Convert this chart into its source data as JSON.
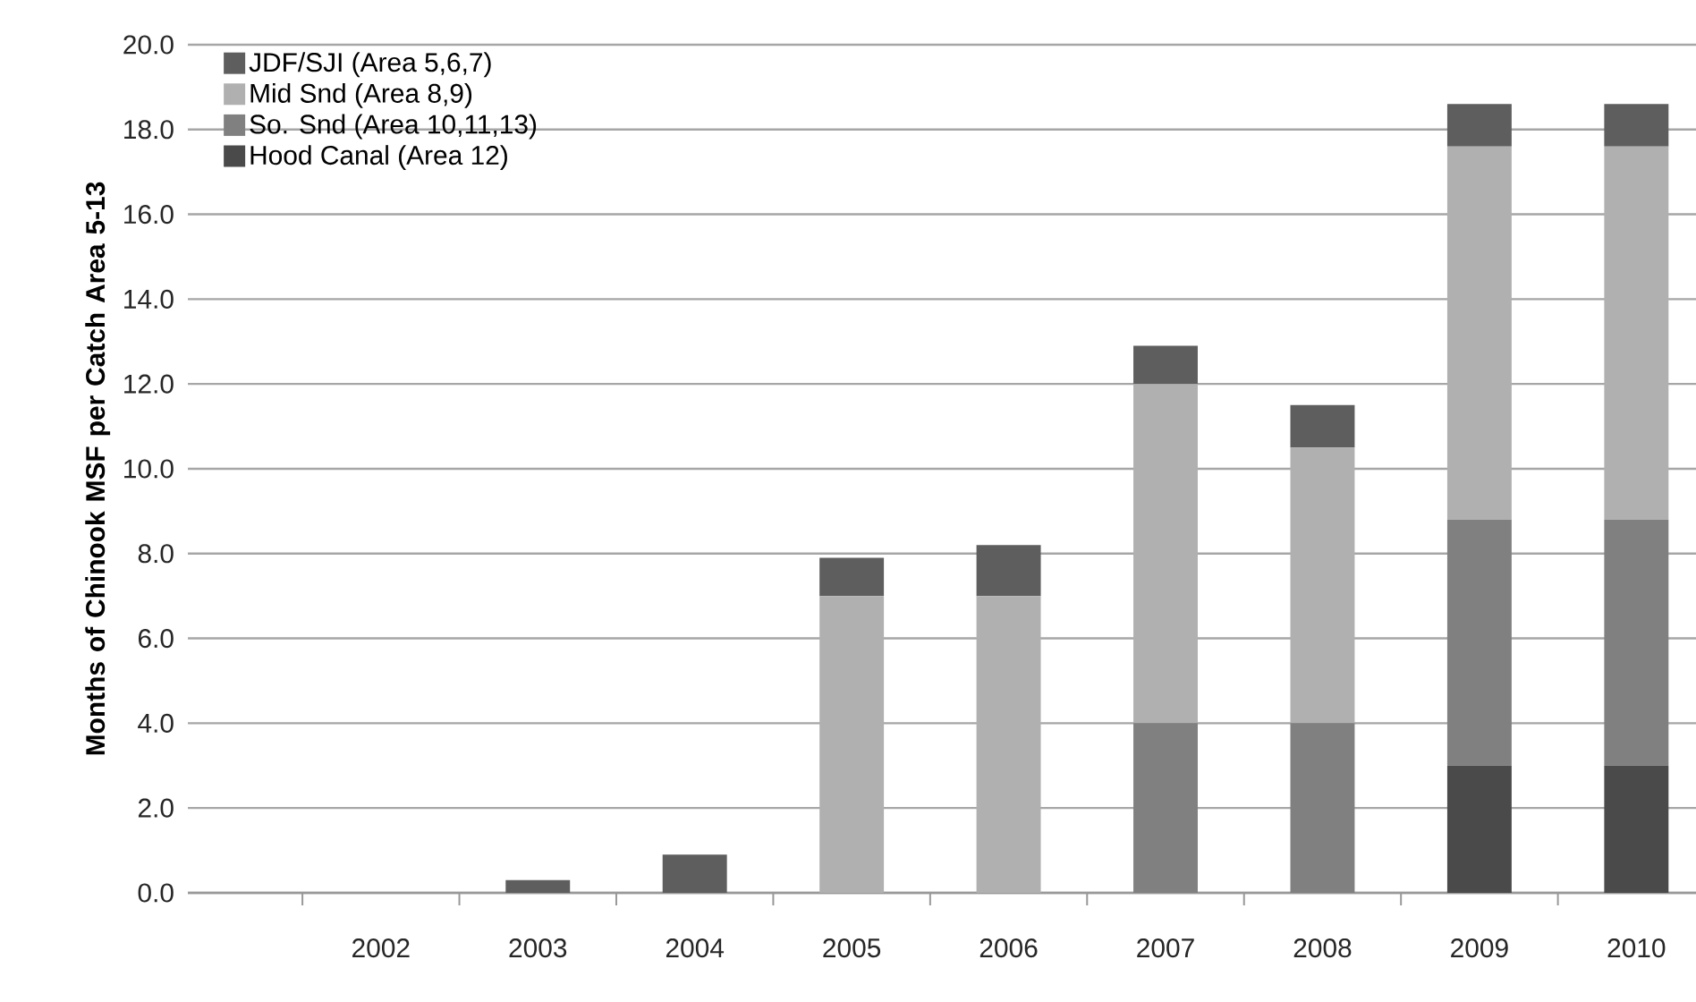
{
  "chart_data": {
    "type": "bar",
    "stacked": true,
    "ylabel": "Months of Chinook MSF per Catch Area 5-13",
    "categories": [
      "2002",
      "2003",
      "2004",
      "2005",
      "2006",
      "2007",
      "2008",
      "2009",
      "2010"
    ],
    "series": [
      {
        "name": "Hood Canal (Area 12)",
        "color": "#4a4a4a",
        "values": [
          0,
          0,
          0,
          0,
          0,
          0,
          0,
          3.0,
          3.0
        ]
      },
      {
        "name": "So. Snd (Area 10,11,13)",
        "color": "#808080",
        "values": [
          0,
          0,
          0,
          0,
          0,
          4.0,
          4.0,
          5.8,
          5.8
        ]
      },
      {
        "name": "Mid Snd (Area 8,9)",
        "color": "#b0b0b0",
        "values": [
          0,
          0,
          0,
          7.0,
          7.0,
          8.0,
          6.5,
          8.8,
          8.8
        ]
      },
      {
        "name": "JDF/SJI (Area 5,6,7)",
        "color": "#5e5e5e",
        "values": [
          0,
          0.3,
          0.9,
          0.9,
          1.2,
          0.9,
          1.0,
          1.0,
          1.0
        ]
      }
    ],
    "ylim": [
      0,
      20
    ],
    "yticks": [
      {
        "value": 0,
        "label": "0.0"
      },
      {
        "value": 2,
        "label": "2.0"
      },
      {
        "value": 4,
        "label": "4.0"
      },
      {
        "value": 6,
        "label": "6.0"
      },
      {
        "value": 8,
        "label": "8.0"
      },
      {
        "value": 10,
        "label": "10.0"
      },
      {
        "value": 12,
        "label": "12.0"
      },
      {
        "value": 14,
        "label": "14.0"
      },
      {
        "value": 16,
        "label": "16.0"
      },
      {
        "value": 18,
        "label": "18.0"
      },
      {
        "value": 20,
        "label": "20.0"
      }
    ],
    "grid": "y",
    "legend": "top left"
  }
}
